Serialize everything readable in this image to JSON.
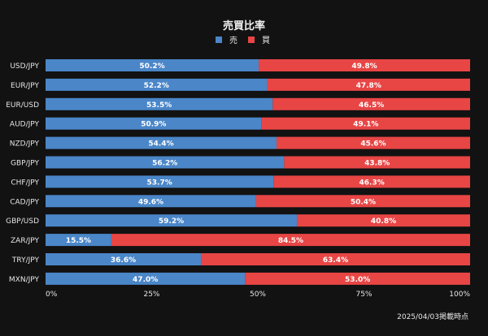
{
  "chart_data": {
    "type": "bar",
    "orientation": "horizontal",
    "stacked": true,
    "title": "売買比率",
    "categories": [
      "USD/JPY",
      "EUR/JPY",
      "EUR/USD",
      "AUD/JPY",
      "NZD/JPY",
      "GBP/JPY",
      "CHF/JPY",
      "CAD/JPY",
      "GBP/USD",
      "ZAR/JPY",
      "TRY/JPY",
      "MXN/JPY"
    ],
    "series": [
      {
        "name": "売",
        "color": "#4a86c8",
        "values": [
          50.2,
          52.2,
          53.5,
          50.9,
          54.4,
          56.2,
          53.7,
          49.6,
          59.2,
          15.5,
          36.6,
          47.0
        ]
      },
      {
        "name": "買",
        "color": "#e84545",
        "values": [
          49.8,
          47.8,
          46.5,
          49.1,
          45.6,
          43.8,
          46.3,
          50.4,
          40.8,
          84.5,
          63.4,
          53.0
        ]
      }
    ],
    "value_suffix": "%",
    "xlim": [
      0,
      100
    ],
    "xticks": [
      "0%",
      "25%",
      "50%",
      "75%",
      "100%"
    ],
    "legend_position": "top-center",
    "grid": false,
    "footnote": "2025/04/03掲載時点"
  }
}
